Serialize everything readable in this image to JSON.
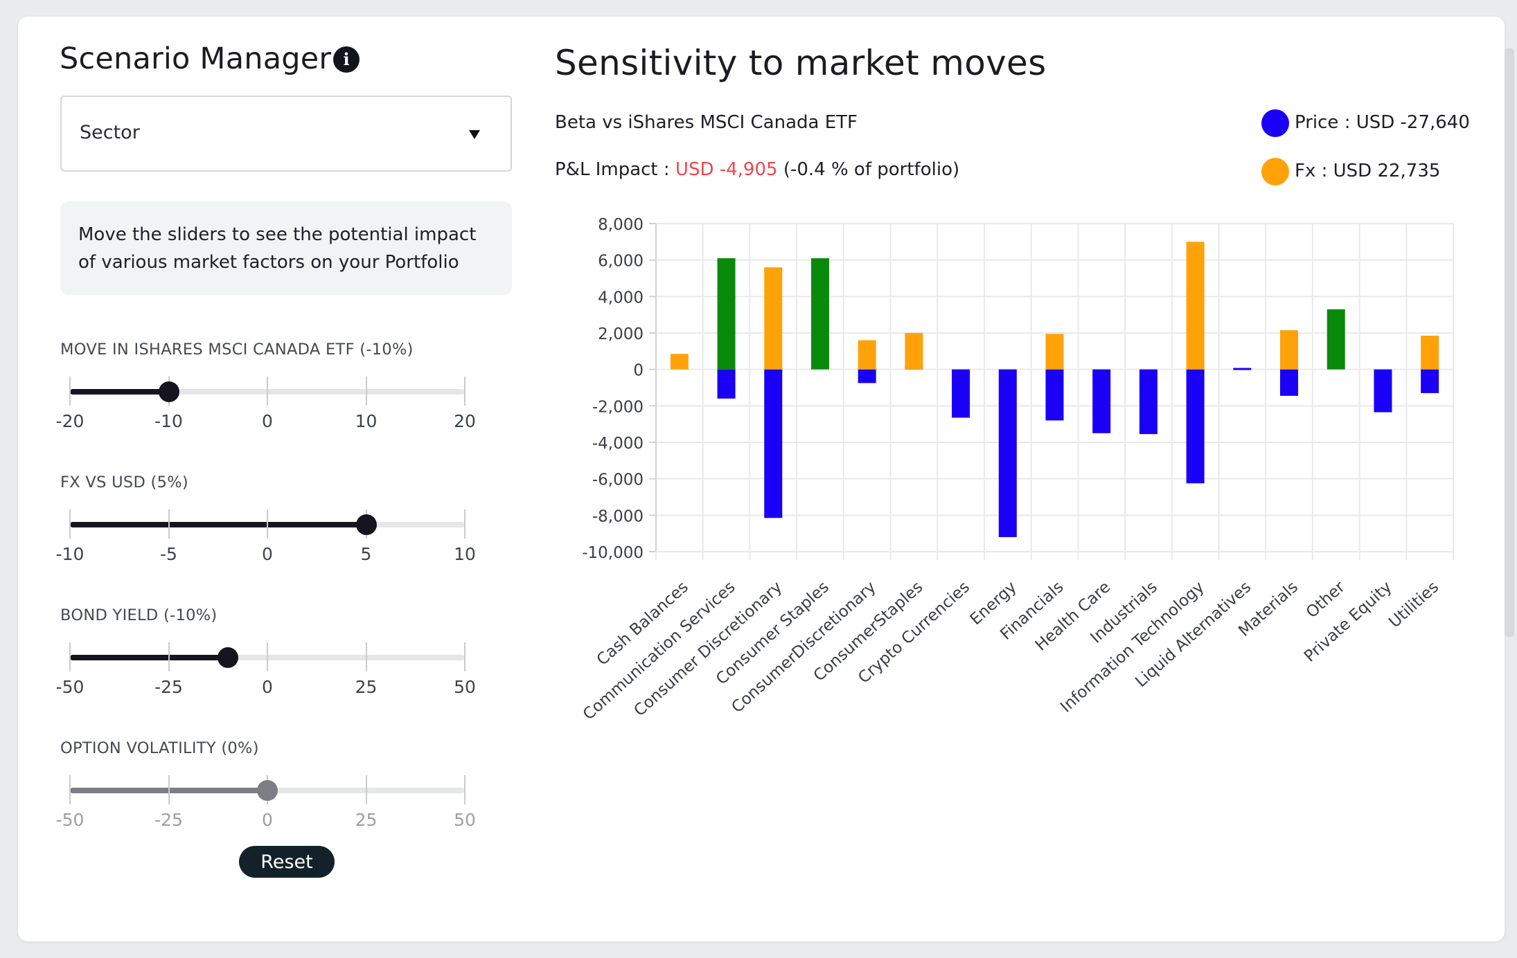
{
  "scenario_manager": {
    "title": "Scenario Manager",
    "info_icon": "info-icon",
    "dropdown": {
      "selected": "Sector",
      "icon": "caret-down-icon"
    },
    "hint": "Move the sliders to see the potential impact of various market factors on your Portfolio",
    "sliders": [
      {
        "label": "MOVE IN ISHARES MSCI CANADA ETF (-10%)",
        "ticks": [
          "-20",
          "-10",
          "0",
          "10",
          "20"
        ],
        "min": -20,
        "max": 20,
        "value": -10,
        "enabled": true
      },
      {
        "label": "FX VS USD (5%)",
        "ticks": [
          "-10",
          "-5",
          "0",
          "5",
          "10"
        ],
        "min": -10,
        "max": 10,
        "value": 5,
        "enabled": true
      },
      {
        "label": "BOND YIELD (-10%)",
        "ticks": [
          "-50",
          "-25",
          "0",
          "25",
          "50"
        ],
        "min": -50,
        "max": 50,
        "value": -10,
        "enabled": true
      },
      {
        "label": "OPTION VOLATILITY (0%)",
        "ticks": [
          "-50",
          "-25",
          "0",
          "25",
          "50"
        ],
        "min": -50,
        "max": 50,
        "value": 0,
        "enabled": false
      }
    ],
    "reset_label": "Reset"
  },
  "sensitivity": {
    "title": "Sensitivity to market moves",
    "beta_text": "Beta vs iShares MSCI Canada ETF",
    "pl_label": "P&L Impact : ",
    "pl_value": "USD -4,905",
    "pl_suffix": " (-0.4 % of portfolio)",
    "legend": [
      {
        "label": "Price : USD -27,640",
        "color": "#1a00f5"
      },
      {
        "label": "Fx : USD 22,735",
        "color": "#ffa20a"
      }
    ]
  },
  "chart_data": {
    "type": "bar",
    "stacked": true,
    "ylim": [
      -10000,
      8000
    ],
    "yticks": [
      8000,
      6000,
      4000,
      2000,
      0,
      -2000,
      -4000,
      -6000,
      -8000,
      -10000
    ],
    "ytick_labels": [
      "8,000",
      "6,000",
      "4,000",
      "2,000",
      "0",
      "-2,000",
      "-4,000",
      "-6,000",
      "-8,000",
      "-10,000"
    ],
    "grid": true,
    "categories": [
      "Cash Balances",
      "Communication Services",
      "Consumer Discretionary",
      "Consumer Staples",
      "ConsumerDiscretionary",
      "ConsumerStaples",
      "Crypto Currencies",
      "Energy",
      "Financials",
      "Health Care",
      "Industrials",
      "Information Technology",
      "Liquid Alternatives",
      "Materials",
      "Other",
      "Private Equity",
      "Utilities"
    ],
    "series": [
      {
        "name": "Price",
        "color": "#1a00f5",
        "values": [
          0,
          -1600,
          -8150,
          0,
          -750,
          250,
          -2650,
          -9200,
          -2800,
          -3500,
          -3550,
          -6250,
          80,
          -1450,
          0,
          -2350,
          -1300
        ]
      },
      {
        "name": "Fx",
        "color": "#ffa20a",
        "values": [
          850,
          0,
          5600,
          0,
          1600,
          2000,
          0,
          0,
          1950,
          0,
          0,
          7000,
          0,
          2150,
          0,
          0,
          1850
        ]
      },
      {
        "color": "#0a8a0a",
        "values": [
          0,
          6100,
          0,
          6100,
          0,
          0,
          0,
          0,
          0,
          0,
          0,
          0,
          0,
          0,
          3300,
          0,
          0
        ]
      }
    ]
  }
}
